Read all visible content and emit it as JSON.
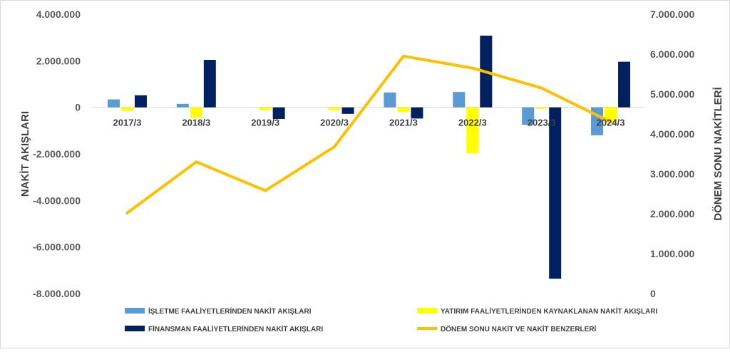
{
  "chart_data": {
    "type": "bar+line",
    "categories": [
      "2017/3",
      "2018/3",
      "2019/3",
      "2020/3",
      "2021/3",
      "2022/3",
      "2023/3",
      "2024/3"
    ],
    "left_axis": {
      "label": "NAKİT AKIŞLARI",
      "min": -8000000,
      "max": 4000000,
      "step": 2000000,
      "tick_labels": [
        "4.000.000",
        "2.000.000",
        "0",
        "-2.000.000",
        "-4.000.000",
        "-6.000.000",
        "-8.000.000"
      ]
    },
    "right_axis": {
      "label": "DÖNEM SONU NAKİTLERİ",
      "min": 0,
      "max": 7000000,
      "step": 1000000,
      "tick_labels": [
        "7.000.000",
        "6.000.000",
        "5.000.000",
        "4.000.000",
        "3.000.000",
        "2.000.000",
        "1.000.000",
        "0"
      ]
    },
    "series": [
      {
        "name": "İŞLETME FAALİYETLERİNDEN NAKİT AKIŞLARI",
        "kind": "bar",
        "axis": "left",
        "color": "#5B9BD5",
        "values": [
          340000,
          150000,
          0,
          0,
          640000,
          660000,
          -750000,
          -1200000
        ]
      },
      {
        "name": "YATIRIM FAALİYETLERİNDEN KAYNAKLANAN NAKİT AKIŞLARI",
        "kind": "bar",
        "axis": "left",
        "color": "#FFFF00",
        "values": [
          -150000,
          -450000,
          -120000,
          -120000,
          -200000,
          -1970000,
          -60000,
          -650000
        ]
      },
      {
        "name": "FİNANSMAN FAALİYETLERİNDEN NAKİT AKIŞLARI",
        "kind": "bar",
        "axis": "left",
        "color": "#002060",
        "values": [
          520000,
          2040000,
          -500000,
          -280000,
          -480000,
          3080000,
          -7360000,
          1960000
        ]
      },
      {
        "name": "DÖNEM SONU NAKİT VE NAKİT BENZERLERİ",
        "kind": "line",
        "axis": "right",
        "color": "#FFC000",
        "values": [
          2020000,
          3300000,
          2580000,
          3680000,
          5950000,
          5650000,
          5150000,
          4300000
        ]
      }
    ],
    "grid": false,
    "legend_position": "bottom"
  }
}
